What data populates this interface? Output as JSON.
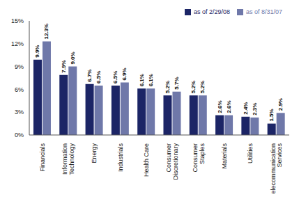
{
  "chart_data": {
    "type": "bar",
    "categories": [
      "Financials",
      "Information Technology",
      "Energy",
      "Industrials",
      "Health Care",
      "Consumer Discretionary",
      "Consumer Staples",
      "Materials",
      "Utilities",
      "Telecommunication Services"
    ],
    "series": [
      {
        "name": "as of 2/29/08",
        "color": "#1c2566",
        "values": [
          9.9,
          7.9,
          6.7,
          6.5,
          6.1,
          5.2,
          5.2,
          2.6,
          2.4,
          1.5
        ],
        "value_labels": [
          "9.9%",
          "7.9%",
          "6.7%",
          "6.5%",
          "6.1%",
          "5.2%",
          "5.2%",
          "2.6%",
          "2.4%",
          "1.5%"
        ]
      },
      {
        "name": "as of 8/31/07",
        "color": "#6f78a9",
        "values": [
          12.3,
          9.0,
          6.5,
          6.9,
          6.1,
          5.7,
          5.2,
          2.6,
          2.3,
          2.9
        ],
        "value_labels": [
          "12.3%",
          "9.0%",
          "6.5%",
          "6.9%",
          "6.1%",
          "5.7%",
          "5.2%",
          "2.6%",
          "2.3%",
          "2.9%"
        ]
      }
    ],
    "ylim": [
      0,
      15
    ],
    "yticks": [
      {
        "value": 0,
        "label": "0%"
      },
      {
        "value": 3,
        "label": "3%"
      },
      {
        "value": 6,
        "label": "6%"
      },
      {
        "value": 9,
        "label": "9%"
      },
      {
        "value": 12,
        "label": "12%"
      },
      {
        "value": 15,
        "label": "15%"
      }
    ],
    "grid": false,
    "legend": "top-right",
    "data_labels": true
  }
}
